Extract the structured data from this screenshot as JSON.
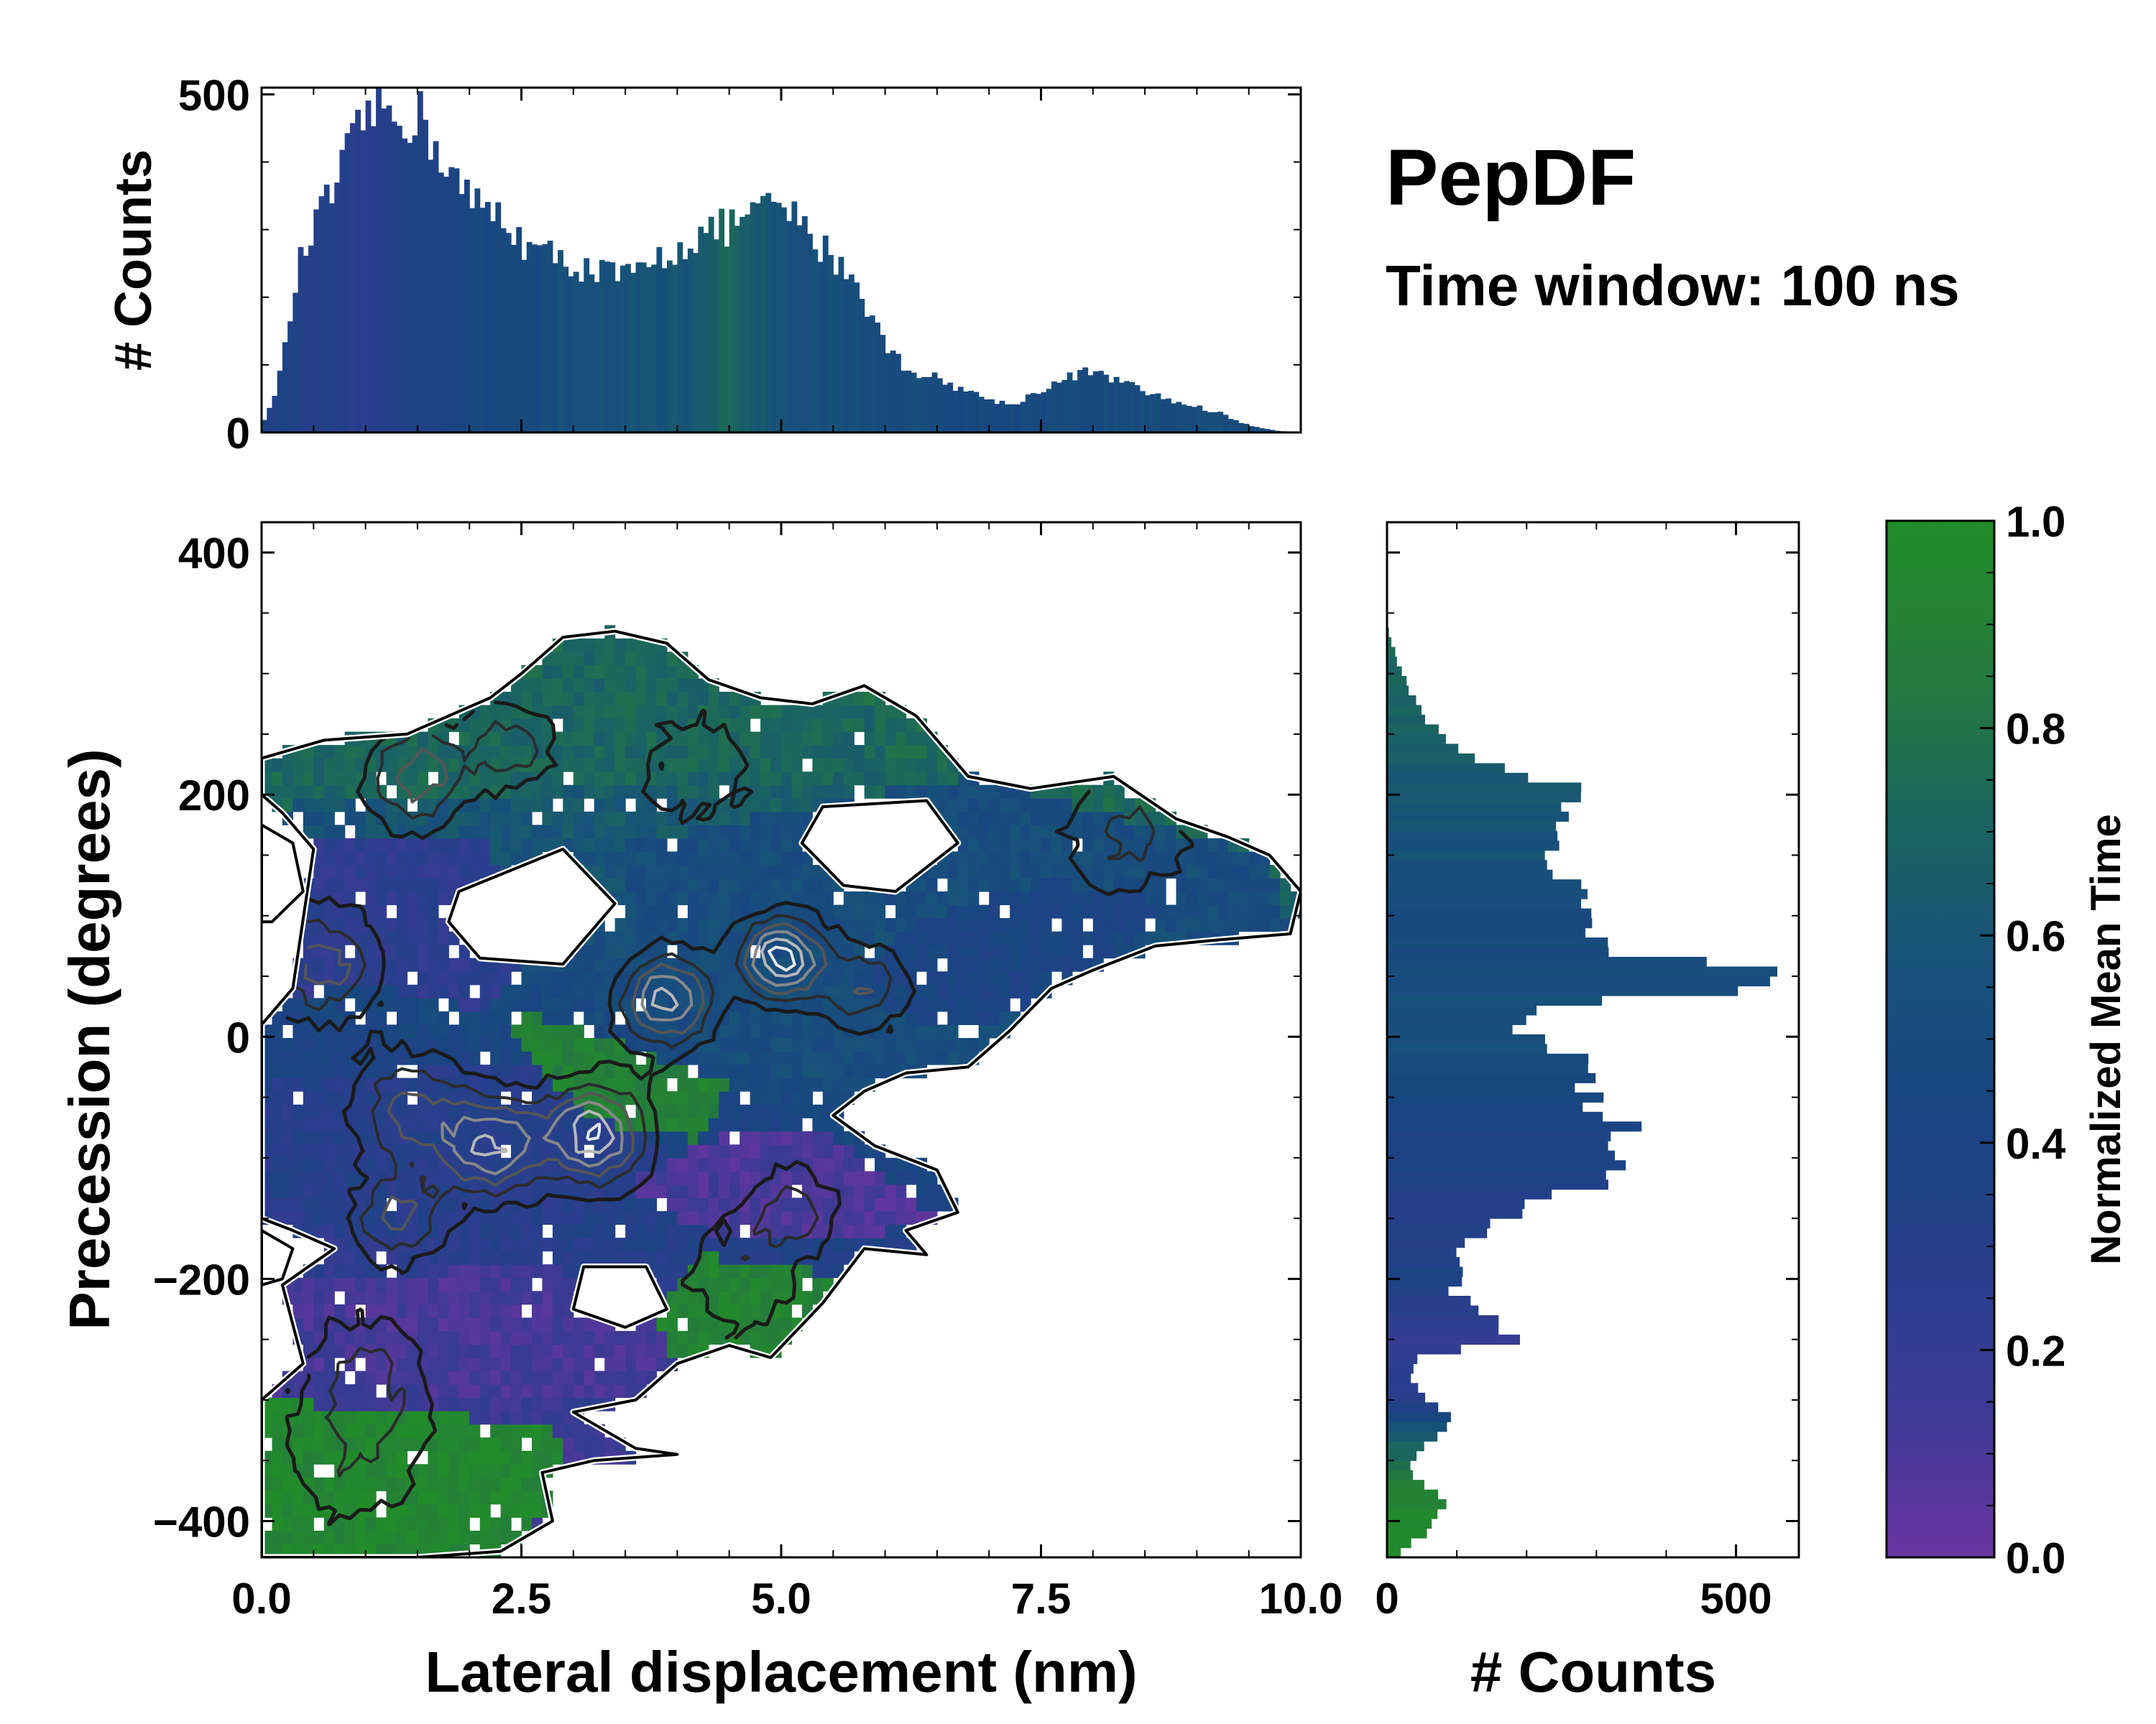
{
  "colors": {
    "cmap": [
      "#6a35a0",
      "#3d3a94",
      "#283f8c",
      "#1a4482",
      "#17517a",
      "#1b6560",
      "#247b3c",
      "#238c2a"
    ],
    "contour_dark": "#1a1a1a",
    "contour_light": "#bdbdbd"
  },
  "annotations": {
    "title": "PepDF",
    "subtitle": "Time window: 100 ns"
  },
  "chart_data": [
    {
      "id": "top-histogram",
      "type": "bar",
      "ylabel": "# Counts",
      "xlim": [
        0,
        10
      ],
      "ylim": [
        0,
        510
      ],
      "yticks": [
        "0",
        "500"
      ],
      "ytick_values": [
        0,
        500
      ],
      "profile_x": [
        0.05,
        0.2,
        0.35,
        0.5,
        0.7,
        0.9,
        1.0,
        1.1,
        1.3,
        1.5,
        1.7,
        2.0,
        2.3,
        2.6,
        3.0,
        3.3,
        3.6,
        3.9,
        4.2,
        4.5,
        4.7,
        4.9,
        5.0,
        5.2,
        5.5,
        5.7,
        6.0,
        6.2,
        6.5,
        6.8,
        7.2,
        7.6,
        7.9,
        8.2,
        8.5,
        8.8,
        9.2,
        9.5,
        9.8,
        10.0
      ],
      "profile_y": [
        20,
        100,
        240,
        300,
        360,
        430,
        470,
        480,
        470,
        470,
        420,
        340,
        320,
        270,
        250,
        235,
        230,
        265,
        290,
        305,
        320,
        330,
        340,
        300,
        260,
        230,
        130,
        95,
        80,
        60,
        40,
        70,
        90,
        80,
        60,
        45,
        30,
        10,
        2,
        0
      ],
      "mean_time_x": [
        0,
        1,
        2,
        3,
        4,
        4.5,
        5,
        6,
        7,
        8,
        9,
        10
      ],
      "mean_time": [
        0.4,
        0.28,
        0.45,
        0.55,
        0.6,
        0.72,
        0.56,
        0.52,
        0.48,
        0.5,
        0.52,
        0.5
      ]
    },
    {
      "id": "right-histogram",
      "type": "bar",
      "orientation": "horizontal",
      "xlabel": "# Counts",
      "xlim": [
        0,
        590
      ],
      "xticks": [
        "0",
        "500"
      ],
      "xtick_values": [
        0,
        500
      ],
      "profile_y": [
        -430,
        -405,
        -385,
        -370,
        -350,
        -335,
        -320,
        -300,
        -280,
        -265,
        -250,
        -230,
        -210,
        -190,
        -165,
        -140,
        -120,
        -100,
        -80,
        -60,
        -40,
        -20,
        0,
        20,
        30,
        40,
        55,
        70,
        80,
        100,
        120,
        140,
        160,
        180,
        200,
        210,
        230,
        250,
        270,
        290,
        310,
        330,
        340
      ],
      "profile_x": [
        15,
        60,
        80,
        50,
        30,
        60,
        100,
        60,
        30,
        40,
        180,
        140,
        100,
        100,
        120,
        190,
        320,
        340,
        360,
        320,
        300,
        310,
        200,
        190,
        300,
        520,
        500,
        360,
        300,
        280,
        260,
        250,
        240,
        250,
        280,
        230,
        130,
        80,
        50,
        30,
        15,
        5,
        0
      ],
      "mean_time_y": [
        -430,
        -380,
        -330,
        -300,
        -250,
        -200,
        -150,
        -100,
        -50,
        0,
        50,
        100,
        150,
        200,
        250,
        300,
        340
      ],
      "mean_time": [
        0.98,
        0.92,
        0.65,
        0.3,
        0.2,
        0.38,
        0.3,
        0.4,
        0.45,
        0.55,
        0.52,
        0.5,
        0.55,
        0.62,
        0.68,
        0.72,
        0.75
      ]
    },
    {
      "id": "main-density",
      "type": "heatmap",
      "xlabel": "Lateral displacement (nm)",
      "ylabel": "Precession (degrees)",
      "xlim": [
        0,
        10
      ],
      "ylim": [
        -430,
        425
      ],
      "xticks": [
        "0.0",
        "2.5",
        "5.0",
        "7.5",
        "10.0"
      ],
      "xtick_values": [
        0,
        2.5,
        5,
        7.5,
        10
      ],
      "yticks": [
        "−400",
        "−200",
        "0",
        "200",
        "400"
      ],
      "ytick_values": [
        -400,
        -200,
        0,
        200,
        400
      ],
      "xstep": 0.1,
      "ystep": 11,
      "region_boundary": [
        [
          0,
          230
        ],
        [
          0.6,
          245
        ],
        [
          1.4,
          250
        ],
        [
          2.2,
          280
        ],
        [
          2.5,
          300
        ],
        [
          2.9,
          330
        ],
        [
          3.4,
          335
        ],
        [
          3.9,
          325
        ],
        [
          4.3,
          295
        ],
        [
          4.8,
          280
        ],
        [
          5.3,
          275
        ],
        [
          5.8,
          290
        ],
        [
          6.3,
          265
        ],
        [
          6.8,
          215
        ],
        [
          7.4,
          205
        ],
        [
          8.2,
          215
        ],
        [
          8.8,
          180
        ],
        [
          9.3,
          165
        ],
        [
          9.7,
          150
        ],
        [
          10,
          120
        ],
        [
          9.9,
          85
        ],
        [
          9.2,
          80
        ],
        [
          8.6,
          75
        ],
        [
          8.0,
          55
        ],
        [
          7.6,
          40
        ],
        [
          7.2,
          5
        ],
        [
          6.8,
          -25
        ],
        [
          6.2,
          -30
        ],
        [
          5.8,
          -45
        ],
        [
          5.5,
          -65
        ],
        [
          5.9,
          -90
        ],
        [
          6.5,
          -110
        ],
        [
          6.7,
          -145
        ],
        [
          6.2,
          -160
        ],
        [
          6.4,
          -180
        ],
        [
          5.8,
          -175
        ],
        [
          5.4,
          -220
        ],
        [
          4.9,
          -265
        ],
        [
          4.5,
          -255
        ],
        [
          4.0,
          -270
        ],
        [
          3.6,
          -300
        ],
        [
          3.0,
          -310
        ],
        [
          3.6,
          -340
        ],
        [
          4.0,
          -345
        ],
        [
          3.2,
          -350
        ],
        [
          2.7,
          -360
        ],
        [
          2.8,
          -400
        ],
        [
          2.3,
          -425
        ],
        [
          1.5,
          -430
        ],
        [
          0,
          -430
        ],
        [
          0,
          -300
        ],
        [
          0.4,
          -270
        ],
        [
          0.2,
          -205
        ],
        [
          0.7,
          -175
        ],
        [
          0.3,
          -160
        ],
        [
          0,
          -150
        ],
        [
          0,
          10
        ],
        [
          0.3,
          40
        ],
        [
          0.5,
          155
        ],
        [
          0.2,
          185
        ],
        [
          0,
          200
        ]
      ],
      "holes": [
        [
          [
            1.9,
            120
          ],
          [
            2.9,
            155
          ],
          [
            3.4,
            110
          ],
          [
            2.9,
            60
          ],
          [
            2.1,
            65
          ],
          [
            1.8,
            95
          ]
        ],
        [
          [
            5.4,
            190
          ],
          [
            6.4,
            195
          ],
          [
            6.7,
            160
          ],
          [
            6.1,
            120
          ],
          [
            5.6,
            125
          ],
          [
            5.2,
            160
          ]
        ],
        [
          [
            3.1,
            -190
          ],
          [
            3.7,
            -190
          ],
          [
            3.9,
            -225
          ],
          [
            3.5,
            -240
          ],
          [
            3.0,
            -225
          ]
        ],
        [
          [
            0.0,
            -160
          ],
          [
            0.3,
            -175
          ],
          [
            0.2,
            -200
          ],
          [
            0.0,
            -205
          ]
        ],
        [
          [
            0.0,
            175
          ],
          [
            0.3,
            160
          ],
          [
            0.4,
            120
          ],
          [
            0.1,
            95
          ],
          [
            0.0,
            95
          ]
        ]
      ],
      "time_regions": [
        {
          "t": 0.25,
          "poly": [
            [
              0,
              170
            ],
            [
              2.2,
              160
            ],
            [
              2.5,
              60
            ],
            [
              2.2,
              20
            ],
            [
              1.2,
              40
            ],
            [
              0,
              35
            ]
          ]
        },
        {
          "t": 0.3,
          "poly": [
            [
              0,
              -40
            ],
            [
              2.5,
              -20
            ],
            [
              3.5,
              -60
            ],
            [
              4.0,
              -120
            ],
            [
              3.0,
              -160
            ],
            [
              1.5,
              -170
            ],
            [
              0,
              -140
            ]
          ]
        },
        {
          "t": 0.12,
          "poly": [
            [
              0,
              -200
            ],
            [
              2.8,
              -190
            ],
            [
              4.4,
              -230
            ],
            [
              3.5,
              -300
            ],
            [
              2.0,
              -300
            ],
            [
              0,
              -270
            ]
          ]
        },
        {
          "t": 0.1,
          "poly": [
            [
              3.5,
              -120
            ],
            [
              4.5,
              -80
            ],
            [
              5.5,
              -80
            ],
            [
              6.5,
              -150
            ],
            [
              5.5,
              -170
            ],
            [
              4.2,
              -160
            ]
          ]
        },
        {
          "t": 0.72,
          "poly": [
            [
              0,
              245
            ],
            [
              2.2,
              280
            ],
            [
              3.4,
              335
            ],
            [
              4.8,
              280
            ],
            [
              6.3,
              265
            ],
            [
              6.0,
              230
            ],
            [
              3.8,
              210
            ],
            [
              2.2,
              200
            ],
            [
              0,
              190
            ]
          ]
        },
        {
          "t": 0.9,
          "poly": [
            [
              2.3,
              25
            ],
            [
              2.9,
              10
            ],
            [
              3.6,
              -10
            ],
            [
              4.5,
              -40
            ],
            [
              4.2,
              -85
            ],
            [
              3.2,
              -70
            ],
            [
              2.5,
              -10
            ]
          ]
        },
        {
          "t": 0.92,
          "poly": [
            [
              4.2,
              -180
            ],
            [
              5.2,
              -190
            ],
            [
              5.8,
              -210
            ],
            [
              5.0,
              -260
            ],
            [
              4.0,
              -270
            ],
            [
              3.8,
              -230
            ]
          ]
        },
        {
          "t": 0.95,
          "poly": [
            [
              0,
              -300
            ],
            [
              2.8,
              -320
            ],
            [
              3.0,
              -380
            ],
            [
              2.3,
              -425
            ],
            [
              0,
              -430
            ]
          ]
        },
        {
          "t": 0.52,
          "poly": [
            [
              3.5,
              160
            ],
            [
              6.8,
              215
            ],
            [
              9.7,
              150
            ],
            [
              9.9,
              85
            ],
            [
              7.2,
              5
            ],
            [
              5.6,
              -60
            ],
            [
              4.4,
              -20
            ],
            [
              3.6,
              40
            ]
          ]
        },
        {
          "t": 0.42,
          "poly": [
            [
              5.6,
              40
            ],
            [
              6.2,
              90
            ],
            [
              7.5,
              130
            ],
            [
              8.8,
              110
            ],
            [
              8.0,
              55
            ],
            [
              6.8,
              0
            ]
          ]
        }
      ],
      "peaks": [
        {
          "x": 5.0,
          "y": 65,
          "h": 1.0,
          "s": 0.28
        },
        {
          "x": 3.9,
          "y": 30,
          "h": 0.85,
          "s": 0.32
        },
        {
          "x": 3.2,
          "y": -80,
          "h": 0.9,
          "s": 0.35
        },
        {
          "x": 2.2,
          "y": -90,
          "h": 0.8,
          "s": 0.35
        },
        {
          "x": 1.3,
          "y": -150,
          "h": 0.55,
          "s": 0.3
        },
        {
          "x": 0.6,
          "y": 60,
          "h": 0.55,
          "s": 0.4
        },
        {
          "x": 1.5,
          "y": 215,
          "h": 0.6,
          "s": 0.35
        },
        {
          "x": 2.4,
          "y": 240,
          "h": 0.45,
          "s": 0.3
        },
        {
          "x": 1.4,
          "y": -60,
          "h": 0.5,
          "s": 0.4
        },
        {
          "x": 5.8,
          "y": 40,
          "h": 0.5,
          "s": 0.3
        },
        {
          "x": 8.3,
          "y": 170,
          "h": 0.4,
          "s": 0.45
        },
        {
          "x": 5.1,
          "y": -140,
          "h": 0.4,
          "s": 0.3
        },
        {
          "x": 1.0,
          "y": -280,
          "h": 0.35,
          "s": 0.45
        },
        {
          "x": 0.9,
          "y": -350,
          "h": 0.3,
          "s": 0.5
        },
        {
          "x": 4.6,
          "y": -200,
          "h": 0.3,
          "s": 0.45
        },
        {
          "x": 4.2,
          "y": 220,
          "h": 0.3,
          "s": 0.45
        }
      ]
    },
    {
      "id": "colorbar",
      "type": "colorbar",
      "label": "Normalized Mean Time",
      "range": [
        0,
        1
      ],
      "ticks": [
        "0.0",
        "0.2",
        "0.4",
        "0.6",
        "0.8",
        "1.0"
      ],
      "tick_values": [
        0,
        0.2,
        0.4,
        0.6,
        0.8,
        1.0
      ]
    }
  ]
}
